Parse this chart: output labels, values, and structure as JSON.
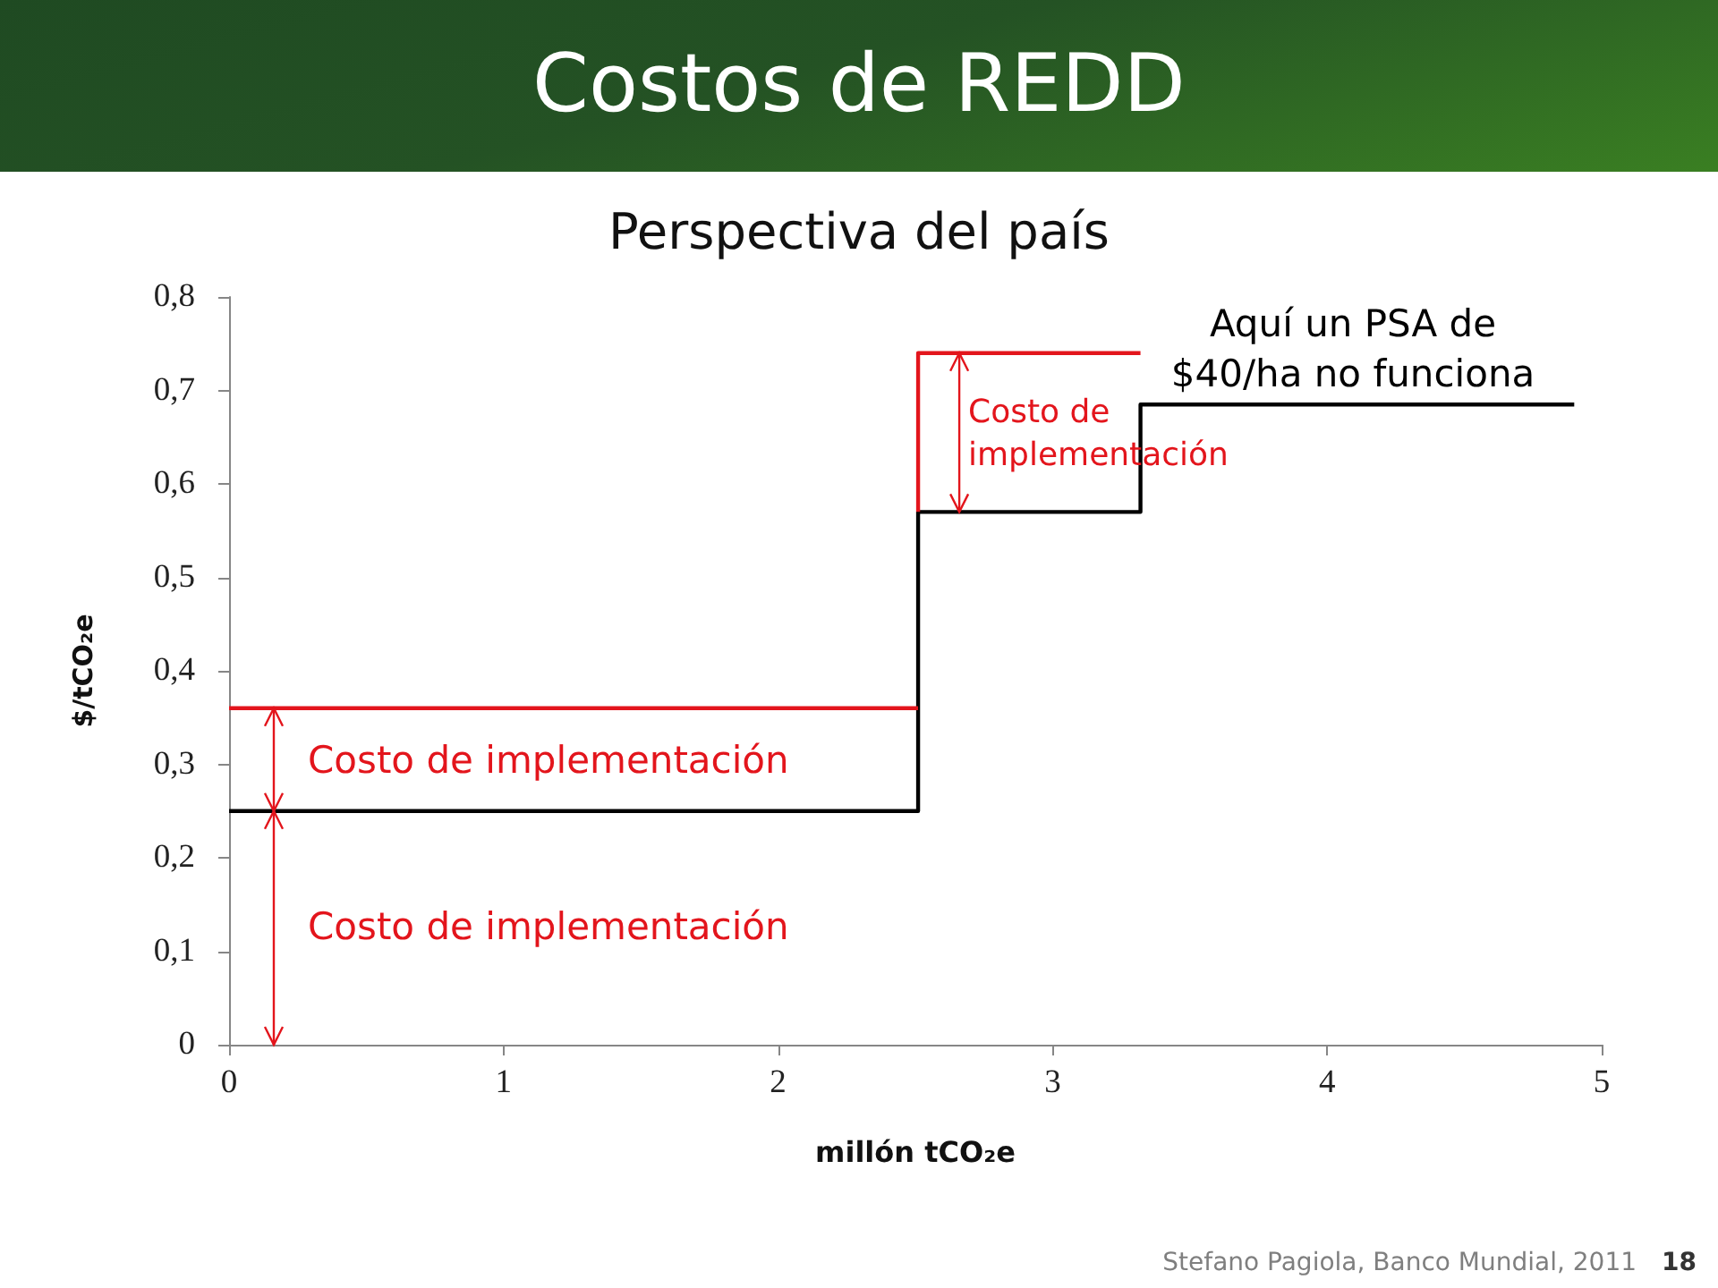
{
  "chart_data": {
    "type": "step",
    "title": "Costos de REDD",
    "subtitle": "Perspectiva del país",
    "xlabel": "millón tCO₂e",
    "ylabel": "$/tCO₂e",
    "series": [
      {
        "color": "#000000",
        "x": [
          0,
          2.51,
          3.32,
          4.9
        ],
        "values": [
          0.25,
          0.57,
          0.685,
          0.685
        ]
      },
      {
        "color": "#e3151c",
        "x": [
          0,
          2.51
        ],
        "values": [
          0.36,
          0.36
        ]
      },
      {
        "color": "#e3151c",
        "x": [
          2.51,
          2.51,
          3.32
        ],
        "values": [
          0.57,
          0.74,
          0.74
        ]
      }
    ],
    "xlim": [
      0,
      5
    ],
    "xticks": [
      0,
      1,
      2,
      3,
      4,
      5
    ],
    "ylim": [
      0,
      0.8
    ],
    "yticks": [
      0,
      {
        "value": 0.1,
        "label": "0,1"
      },
      {
        "value": 0.2,
        "label": "0,2"
      },
      {
        "value": 0.3,
        "label": "0,3"
      },
      {
        "value": 0.4,
        "label": "0,4"
      },
      {
        "value": 0.5,
        "label": "0,5"
      },
      {
        "value": 0.6,
        "label": "0,6"
      },
      {
        "value": 0.7,
        "label": "0,7"
      },
      {
        "value": 0.8,
        "label": "0,8"
      }
    ],
    "grid": false,
    "annotations": [
      "Costo de implementación",
      "Costo de implementación",
      {
        "text": "Costo de\nimplementación",
        "x": 2.66,
        "y": 0.74
      },
      "Aquí un PSA de\n$40/ha no funciona",
      "Stefano Pagiola, Banco Mundial, 2011",
      "18"
    ]
  }
}
